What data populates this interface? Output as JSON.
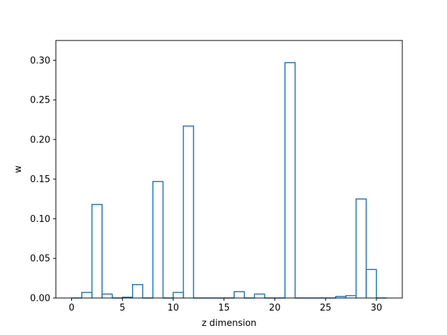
{
  "chart_data": {
    "type": "bar",
    "style": "step-outline histogram",
    "xlabel": "z dimension",
    "ylabel": "w",
    "xlim": [
      -1.55,
      32.55
    ],
    "ylim": [
      0,
      0.325
    ],
    "x_ticks": [
      0,
      5,
      10,
      15,
      20,
      25,
      30
    ],
    "x_tick_labels": [
      "0",
      "5",
      "10",
      "15",
      "20",
      "25",
      "30"
    ],
    "y_ticks": [
      0.0,
      0.05,
      0.1,
      0.15,
      0.2,
      0.25,
      0.3
    ],
    "y_tick_labels": [
      "0.00",
      "0.05",
      "0.10",
      "0.15",
      "0.20",
      "0.25",
      "0.30"
    ],
    "bin_edges": [
      0,
      1,
      2,
      3,
      4,
      5,
      6,
      7,
      8,
      9,
      10,
      11,
      12,
      13,
      14,
      15,
      16,
      17,
      18,
      19,
      20,
      21,
      22,
      23,
      24,
      25,
      26,
      27,
      28,
      29,
      30,
      31
    ],
    "categories": [
      "0",
      "1",
      "2",
      "3",
      "4",
      "5",
      "6",
      "7",
      "8",
      "9",
      "10",
      "11",
      "12",
      "13",
      "14",
      "15",
      "16",
      "17",
      "18",
      "19",
      "20",
      "21",
      "22",
      "23",
      "24",
      "25",
      "26",
      "27",
      "28",
      "29",
      "30"
    ],
    "values": [
      0.0,
      0.007,
      0.118,
      0.005,
      0.0,
      0.001,
      0.017,
      0.0,
      0.147,
      0.0,
      0.007,
      0.217,
      0.0,
      0.0,
      0.0,
      0.0,
      0.008,
      0.0,
      0.005,
      0.0,
      0.0,
      0.297,
      0.0,
      0.0,
      0.0,
      0.0,
      0.002,
      0.003,
      0.125,
      0.036,
      0.0
    ],
    "grid": false,
    "color": "#1f77b4"
  }
}
